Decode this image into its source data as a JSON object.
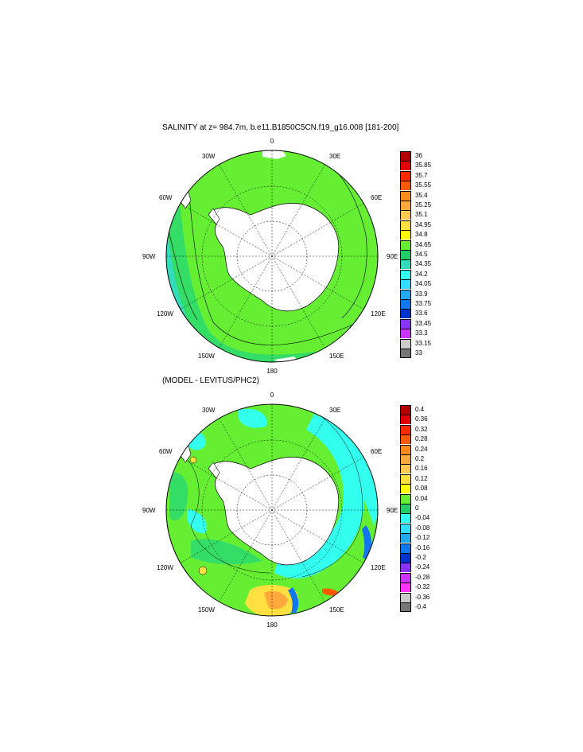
{
  "panels": {
    "top": {
      "title": "SALINITY at z= 984.7m, b.e11.B1850C5CN.f19_g16.008 [181-200]"
    },
    "bottom": {
      "title": "(MODEL - LEVITUS/PHC2)"
    }
  },
  "longitude_labels": {
    "n0": "0",
    "n30e": "30E",
    "n60e": "60E",
    "n90e": "90E",
    "n120e": "120E",
    "n150e": "150E",
    "n180": "180",
    "n150w": "150W",
    "n120w": "120W",
    "n90w": "90W",
    "n60w": "60W",
    "n30w": "30W"
  },
  "colors": {
    "land": "#ffffff",
    "salinity_main": "#66ee33",
    "salinity_deep": "#33dd66",
    "salinity_coast": "#33ddbb",
    "anomaly_green": "#66ee33",
    "anomaly_dark_green": "#33dd66",
    "anomaly_cyan": "#33ffee"
  },
  "chart_data": [
    {
      "type": "heatmap",
      "title": "SALINITY at z= 984.7m, b.e11.B1850C5CN.f19_g16.008 [181-200]",
      "projection": "south polar stereographic",
      "colorbar": {
        "levels": [
          "36",
          "35.85",
          "35.7",
          "35.55",
          "35.4",
          "35.25",
          "35.1",
          "34.95",
          "34.8",
          "34.65",
          "34.5",
          "34.35",
          "34.2",
          "34.05",
          "33.9",
          "33.75",
          "33.6",
          "33.45",
          "33.3",
          "33.15",
          "33"
        ],
        "colors": [
          "#b00000",
          "#e00000",
          "#ff2a00",
          "#ff5a00",
          "#ff8a1e",
          "#ffa83c",
          "#ffc850",
          "#ffe040",
          "#ffff00",
          "#66ee33",
          "#22cc66",
          "#33ddbb",
          "#33ffee",
          "#33ddff",
          "#22aaee",
          "#1177ee",
          "#0033cc",
          "#8833ff",
          "#cc33ff",
          "#cccccc",
          "#777777"
        ]
      }
    },
    {
      "type": "heatmap",
      "title": "(MODEL - LEVITUS/PHC2)",
      "projection": "south polar stereographic",
      "colorbar": {
        "levels": [
          "0.4",
          "0.36",
          "0.32",
          "0.28",
          "0.24",
          "0.2",
          "0.16",
          "0.12",
          "0.08",
          "0.04",
          "0",
          "-0.04",
          "-0.08",
          "-0.12",
          "-0.16",
          "-0.2",
          "-0.24",
          "-0.28",
          "-0.32",
          "-0.36",
          "-0.4"
        ],
        "colors": [
          "#b00000",
          "#e00000",
          "#ff2a00",
          "#ff5a00",
          "#ff8a1e",
          "#ffa83c",
          "#ffc850",
          "#ffe040",
          "#ffff00",
          "#66ee33",
          "#22cc66",
          "#33ffee",
          "#33ddff",
          "#22aaee",
          "#1177ee",
          "#0033cc",
          "#8833ff",
          "#cc33ff",
          "#ff33ff",
          "#cccccc",
          "#777777"
        ]
      }
    }
  ]
}
